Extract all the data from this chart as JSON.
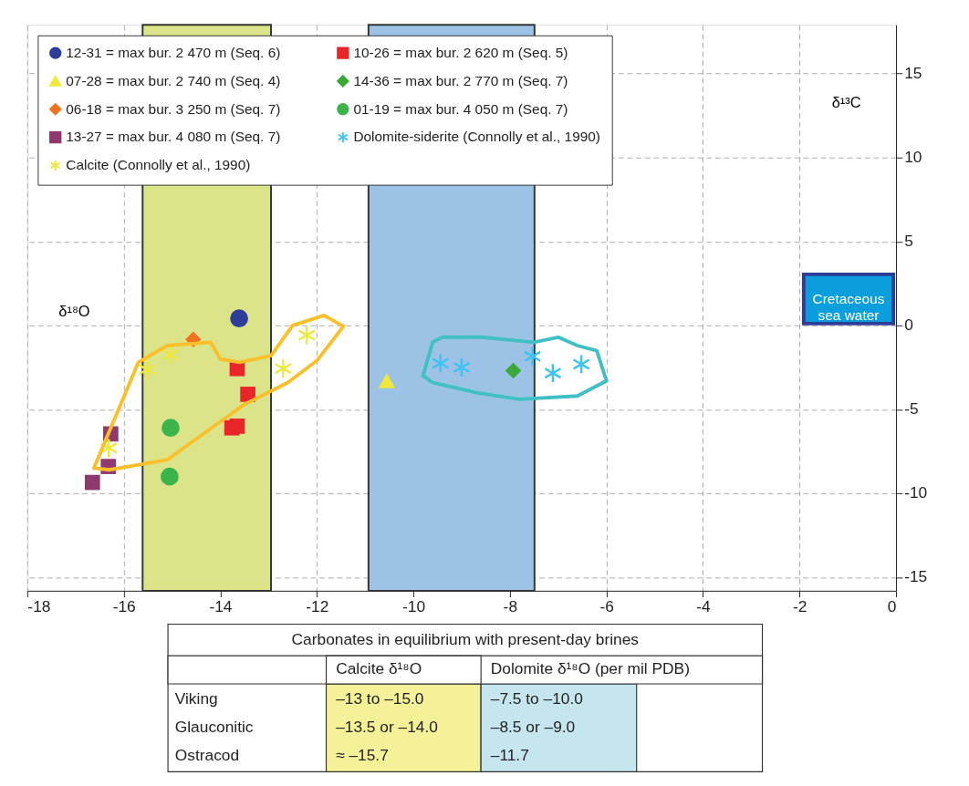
{
  "chart_data": {
    "type": "scatter",
    "xlabel": "δ¹⁸O",
    "ylabel": "δ¹³C",
    "xlim": [
      -18,
      0
    ],
    "xticks": [
      -18,
      -16,
      -14,
      -12,
      -10,
      -8,
      -6,
      -4,
      -2,
      0
    ],
    "ylim": [
      -15.8,
      17.9
    ],
    "yticks": [
      -15,
      -10,
      -5,
      0,
      5,
      10,
      15
    ],
    "grid": true,
    "legend": "top left",
    "bands": [
      {
        "axis": "x",
        "from": -15.61,
        "to": -12.95,
        "color": "#dce48a"
      },
      {
        "axis": "x",
        "from": -10.93,
        "to": -7.49,
        "color": "#9cc3e6"
      }
    ],
    "series": [
      {
        "type": "line",
        "color": "#fbbf2a",
        "x": [
          -16.62,
          -15.7,
          -15.1,
          -14.2,
          -14.0,
          -13.6,
          -12.95,
          -12.5,
          -11.85,
          -11.45
        ],
        "values": [
          -8.5,
          -2.2,
          -1.2,
          -1.0,
          -2.0,
          -2.2,
          -1.8,
          0.0,
          0.6,
          -0.05
        ]
      },
      {
        "type": "line",
        "color": "#fbbf2a",
        "x": [
          -16.62,
          -16.3,
          -15.1,
          -13.5,
          -12.6,
          -12.0,
          -11.45
        ],
        "values": [
          -8.5,
          -8.6,
          -8.0,
          -4.7,
          -3.4,
          -2.1,
          -0.05
        ]
      },
      {
        "type": "line",
        "color": "#40c0c4",
        "x": [
          -9.8,
          -9.6,
          -9.4,
          -8.6,
          -7.5,
          -7.0,
          -6.6,
          -6.2,
          -6.0
        ],
        "values": [
          -3.0,
          -1.0,
          -0.7,
          -0.7,
          -1.0,
          -0.7,
          -1.2,
          -1.5,
          -3.3
        ]
      },
      {
        "type": "line",
        "color": "#40c0c4",
        "x": [
          -9.8,
          -9.6,
          -8.7,
          -7.8,
          -6.6,
          -6.0
        ],
        "values": [
          -3.0,
          -3.4,
          -4.0,
          -4.4,
          -4.2,
          -3.3
        ]
      },
      {
        "name": "12-31 = max bur. 2 470 m (Seq. 6)",
        "color": "#2e3d98",
        "marker": "circle",
        "x": [
          -13.61
        ],
        "values": [
          0.42
        ]
      },
      {
        "name": "10-26 = max bur. 2 620 m (Seq. 5)",
        "color": "#e8262a",
        "marker": "square",
        "x": [
          -13.65,
          -13.43,
          -13.76,
          -13.65
        ],
        "values": [
          -2.57,
          -4.1,
          -6.1,
          -6.0
        ]
      },
      {
        "name": "07-28 = max bur. 2 740 m (Seq. 4)",
        "color": "#f0e83a",
        "marker": "triangle",
        "x": [
          -10.55
        ],
        "values": [
          -3.3
        ]
      },
      {
        "name": "14-36 = max bur. 2 770 m (Seq. 7)",
        "color": "#3aa935",
        "marker": "diamond",
        "x": [
          -7.93
        ],
        "values": [
          -2.7
        ]
      },
      {
        "name": "06-18 = max bur. 3 250 m (Seq. 7)",
        "color": "#f07322",
        "marker": "diamond",
        "x": [
          -14.56
        ],
        "values": [
          -0.84
        ]
      },
      {
        "name": "01-19 = max bur. 4 050 m (Seq. 7)",
        "color": "#3bb54a",
        "marker": "circle",
        "x": [
          -15.03,
          -15.05
        ],
        "values": [
          -6.1,
          -9.0
        ]
      },
      {
        "name": "13-27 = max bur. 4 080 m (Seq. 7)",
        "color": "#8e3a6e",
        "marker": "square",
        "x": [
          -16.65,
          -16.32,
          -16.27
        ],
        "values": [
          -9.35,
          -8.4,
          -6.46
        ]
      },
      {
        "name": "Dolomite-siderite (Connolly et al., 1990)",
        "color": "#3ec3f0",
        "marker": "cross",
        "x": [
          -9.44,
          -9.0,
          -7.53,
          -7.11,
          -6.52
        ],
        "values": [
          -2.26,
          -2.5,
          -1.84,
          -2.84,
          -2.31
        ]
      },
      {
        "name": "Calcite (Connolly et al., 1990)",
        "color": "#ece83c",
        "marker": "cross",
        "x": [
          -15.52,
          -15.03,
          -16.31,
          -12.7,
          -12.21
        ],
        "values": [
          -2.63,
          -1.73,
          -7.3,
          -2.57,
          -0.58
        ]
      }
    ],
    "annotations": [
      "Cretaceous\nsea water",
      "Carbonates in equilibrium with present-day brines",
      "Calcite δ¹⁸O",
      "Dolomite δ¹⁸O (per mil PDB)",
      "Viking",
      "–13 to –15.0",
      "–7.5 to –10.0",
      "Glauconitic",
      "–13.5 or –14.0",
      "–8.5 or –9.0",
      "Ostracod",
      "≈ –15.7",
      "–11.7"
    ]
  }
}
